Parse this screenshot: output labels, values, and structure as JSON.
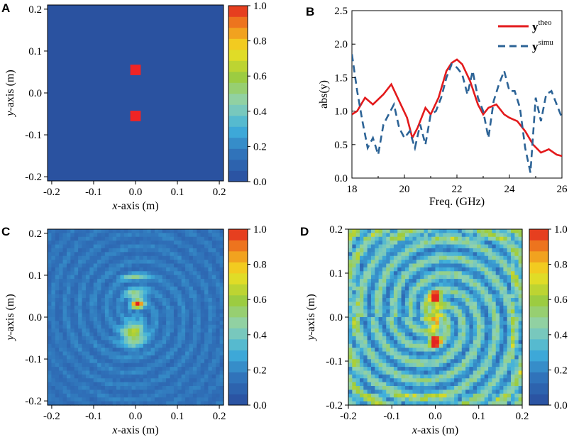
{
  "figure": {
    "panels": [
      "A",
      "B",
      "C",
      "D"
    ],
    "xlabel_italic": "x",
    "xlabel_rest": "-axis (m)",
    "ylabel_italic": "y",
    "ylabel_rest": "-axis (m)"
  },
  "colors": {
    "theo": "#e31a1c",
    "simu": "#2c6396",
    "background_map": "#2a52a0",
    "target": "#ef2424"
  },
  "chart_data": [
    {
      "panel": "A",
      "type": "heatmap",
      "title": "",
      "xlabel": "x-axis (m)",
      "ylabel": "y-axis (m)",
      "xlim": [
        -0.21,
        0.21
      ],
      "ylim": [
        -0.21,
        0.21
      ],
      "xticks": [
        "-0.2",
        "-0.1",
        "0.0",
        "0.1",
        "0.2"
      ],
      "yticks": [
        "0.2",
        "0.1",
        "0.0",
        "-0.1",
        "-0.2"
      ],
      "colorbar_ticks": [
        "1.0",
        "0.8",
        "0.6",
        "0.4",
        "0.2",
        "0.0"
      ],
      "colorbar_range": [
        0,
        1
      ],
      "background_value": 0.0,
      "targets": [
        {
          "x": 0.0,
          "y": 0.055,
          "size": 0.025,
          "value": 1.0
        },
        {
          "x": 0.0,
          "y": -0.055,
          "size": 0.025,
          "value": 1.0
        }
      ]
    },
    {
      "panel": "B",
      "type": "line",
      "xlabel": "Freq. (GHz)",
      "ylabel": "abs(y)",
      "xlim": [
        18,
        26
      ],
      "ylim": [
        0,
        2.5
      ],
      "xticks": [
        "18",
        "20",
        "22",
        "24",
        "26"
      ],
      "yticks": [
        "2.5",
        "2.0",
        "1.5",
        "1.0",
        "0.5",
        "0.0"
      ],
      "legend": "top-right",
      "legend_base": "y",
      "legend_theo_sup": "theo",
      "legend_simu_sup": "simu",
      "series": [
        {
          "name": "y theo",
          "style": "solid",
          "x": [
            18.0,
            18.2,
            18.5,
            18.8,
            19.2,
            19.5,
            19.8,
            20.1,
            20.3,
            20.5,
            20.8,
            21.0,
            21.3,
            21.6,
            21.8,
            22.0,
            22.2,
            22.5,
            22.8,
            23.0,
            23.2,
            23.5,
            23.8,
            24.0,
            24.3,
            24.6,
            24.9,
            25.2,
            25.5,
            25.8,
            26.0
          ],
          "values": [
            0.95,
            1.0,
            1.2,
            1.1,
            1.25,
            1.4,
            1.15,
            0.9,
            0.6,
            0.75,
            1.05,
            0.95,
            1.2,
            1.6,
            1.72,
            1.77,
            1.7,
            1.45,
            1.1,
            0.95,
            1.05,
            1.1,
            0.95,
            0.9,
            0.85,
            0.7,
            0.5,
            0.38,
            0.43,
            0.35,
            0.33
          ]
        },
        {
          "name": "y simu",
          "style": "dashed",
          "x": [
            18.0,
            18.2,
            18.4,
            18.6,
            18.8,
            19.0,
            19.2,
            19.4,
            19.6,
            19.8,
            20.0,
            20.2,
            20.4,
            20.6,
            20.8,
            21.0,
            21.2,
            21.4,
            21.6,
            21.8,
            22.0,
            22.2,
            22.4,
            22.6,
            22.8,
            23.0,
            23.2,
            23.4,
            23.6,
            23.8,
            24.0,
            24.2,
            24.4,
            24.6,
            24.8,
            25.0,
            25.2,
            25.4,
            25.6,
            25.8,
            26.0
          ],
          "values": [
            1.85,
            1.3,
            0.85,
            0.45,
            0.6,
            0.35,
            0.8,
            0.95,
            1.1,
            0.75,
            0.6,
            0.7,
            0.45,
            0.8,
            0.5,
            0.95,
            1.0,
            1.2,
            1.5,
            1.7,
            1.65,
            1.55,
            1.25,
            1.6,
            1.2,
            1.0,
            0.6,
            1.15,
            1.4,
            1.6,
            1.3,
            1.3,
            1.05,
            0.45,
            0.08,
            1.2,
            0.85,
            1.25,
            1.3,
            1.1,
            0.9
          ]
        }
      ]
    },
    {
      "panel": "C",
      "type": "heatmap",
      "xlabel": "x-axis (m)",
      "ylabel": "y-axis (m)",
      "xlim": [
        -0.21,
        0.21
      ],
      "ylim": [
        -0.21,
        0.21
      ],
      "xticks": [
        "-0.2",
        "-0.1",
        "0.0",
        "0.1",
        "0.2"
      ],
      "yticks": [
        "0.2",
        "0.1",
        "0.0",
        "-0.1",
        "-0.2"
      ],
      "colorbar_ticks": [
        "1.0",
        "0.8",
        "0.6",
        "0.4",
        "0.2",
        "0.0"
      ],
      "colorbar_range": [
        0,
        1
      ],
      "peaks": [
        {
          "x": 0.005,
          "y": 0.03,
          "value": 1.0
        },
        {
          "x": -0.005,
          "y": -0.04,
          "value": 0.48
        }
      ]
    },
    {
      "panel": "D",
      "type": "heatmap",
      "xlabel": "x-axis (m)",
      "ylabel": "y-axis (m)",
      "xlim": [
        -0.2,
        0.2
      ],
      "ylim": [
        -0.2,
        0.2
      ],
      "xticks": [
        "-0.2",
        "-0.1",
        "0.0",
        "0.1",
        "0.2"
      ],
      "yticks": [
        "0.2",
        "0.1",
        "0.0",
        "-0.1",
        "-0.2"
      ],
      "colorbar_ticks": [
        "1.0",
        "0.8",
        "0.6",
        "0.4",
        "0.2",
        "0.0"
      ],
      "colorbar_range": [
        0,
        1
      ],
      "peaks": [
        {
          "x": 0.0,
          "y": 0.045,
          "value": 1.0
        },
        {
          "x": 0.0,
          "y": -0.055,
          "value": 1.0
        }
      ]
    }
  ]
}
